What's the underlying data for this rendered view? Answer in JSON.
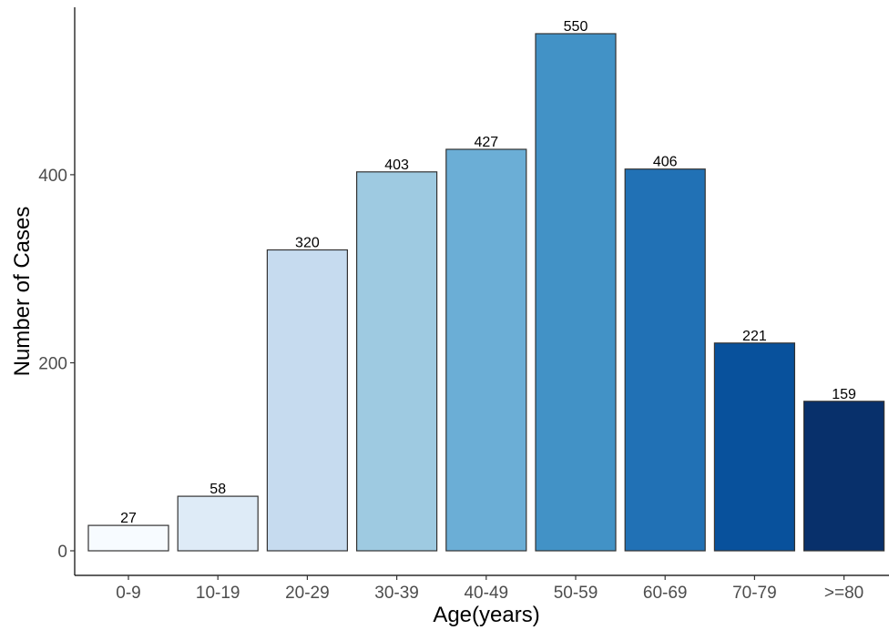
{
  "chart_data": {
    "type": "bar",
    "title": "",
    "xlabel": "Age(years)",
    "ylabel": "Number of Cases",
    "categories": [
      "0-9",
      "10-19",
      "20-29",
      "30-39",
      "40-49",
      "50-59",
      "60-69",
      "70-79",
      ">=80"
    ],
    "values": [
      27,
      58,
      320,
      403,
      427,
      550,
      406,
      221,
      159
    ],
    "data_labels": [
      "27",
      "58",
      "320",
      "403",
      "427",
      "550",
      "406",
      "221",
      "159"
    ],
    "ylim": [
      0,
      571
    ],
    "yticks": [
      0,
      200,
      400
    ],
    "ytick_labels": [
      "0",
      "200",
      "400"
    ],
    "grid": false,
    "legend": "none",
    "colors": [
      "#f7fbff",
      "#deebf7",
      "#c6dbef",
      "#9ecae1",
      "#6baed6",
      "#4292c6",
      "#2171b5",
      "#08519c",
      "#08306b"
    ]
  }
}
